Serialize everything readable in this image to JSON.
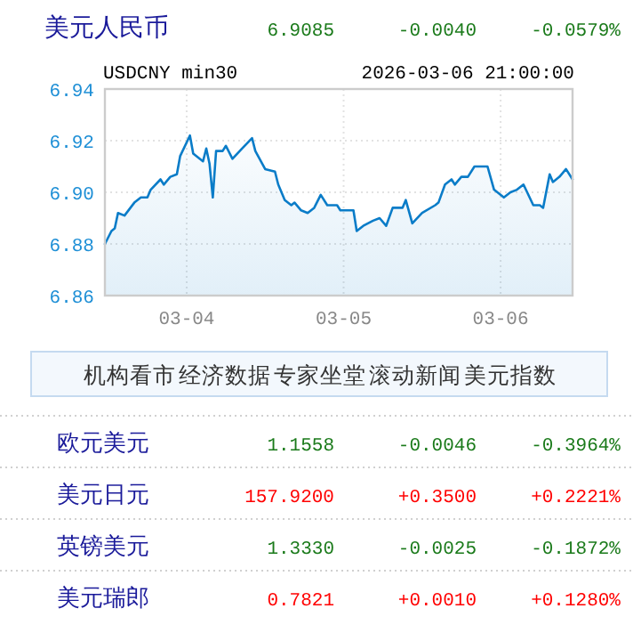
{
  "chart_data": [
    {
      "type": "other",
      "annotations": [
        "美元人民币",
        "6.9085",
        "-0.0040",
        "-0.0579%"
      ],
      "colors": [
        "#1a1a9a",
        "#1a7a1a",
        "#1a7a1a",
        "#1a7a1a"
      ]
    },
    {
      "type": "area",
      "title": "USDCNY min30",
      "subtitle": "2026-03-06 21:00:00",
      "xlim": [
        "2026-03-03T11:30",
        "2026-03-06T11:00"
      ],
      "xticks": [
        {
          "value": "2026-03-04",
          "label": "03-04"
        },
        {
          "value": "2026-03-05",
          "label": "03-05"
        },
        {
          "value": "2026-03-06",
          "label": "03-06"
        }
      ],
      "ylim": [
        6.86,
        6.94
      ],
      "yticks": [
        6.86,
        6.88,
        {
          "value": 6.9,
          "label": "6.90"
        },
        6.92,
        6.94
      ],
      "grid": true,
      "series": [
        {
          "color": "#0a7cc8",
          "x": [
            "2026-03-03T11:30",
            "2026-03-03T12:30",
            "2026-03-03T13:00",
            "2026-03-03T13:30",
            "2026-03-03T14:30",
            "2026-03-03T16:00",
            "2026-03-03T17:00",
            "2026-03-03T18:00",
            "2026-03-03T18:30",
            "2026-03-03T20:00",
            "2026-03-03T20:30",
            "2026-03-03T21:30",
            "2026-03-03T22:30",
            "2026-03-03T23:00",
            "2026-03-04T00:30",
            "2026-03-04T01:00",
            "2026-03-04T02:30",
            "2026-03-04T03:00",
            "2026-03-04T03:30",
            "2026-03-04T04:00",
            "2026-03-04T04:30",
            "2026-03-04T05:30",
            "2026-03-04T06:00",
            "2026-03-04T07:00",
            "2026-03-04T08:30",
            "2026-03-04T10:00",
            "2026-03-04T10:30",
            "2026-03-04T12:00",
            "2026-03-04T13:30",
            "2026-03-04T14:00",
            "2026-03-04T15:00",
            "2026-03-04T16:00",
            "2026-03-04T16:30",
            "2026-03-04T17:30",
            "2026-03-04T18:30",
            "2026-03-04T19:30",
            "2026-03-04T20:30",
            "2026-03-04T21:30",
            "2026-03-04T23:00",
            "2026-03-04T23:30",
            "2026-03-05T01:30",
            "2026-03-05T02:00",
            "2026-03-05T03:00",
            "2026-03-05T04:30",
            "2026-03-05T05:30",
            "2026-03-05T06:30",
            "2026-03-05T07:30",
            "2026-03-05T09:00",
            "2026-03-05T09:30",
            "2026-03-05T10:30",
            "2026-03-05T12:00",
            "2026-03-05T14:00",
            "2026-03-05T14:30",
            "2026-03-05T15:30",
            "2026-03-05T16:30",
            "2026-03-05T17:00",
            "2026-03-05T18:00",
            "2026-03-05T19:00",
            "2026-03-05T20:00",
            "2026-03-05T22:00",
            "2026-03-05T23:00",
            "2026-03-06T00:30",
            "2026-03-06T01:30",
            "2026-03-06T02:30",
            "2026-03-06T03:30",
            "2026-03-06T05:00",
            "2026-03-06T06:00",
            "2026-03-06T06:30",
            "2026-03-06T07:30",
            "2026-03-06T08:00",
            "2026-03-06T09:00",
            "2026-03-06T10:00",
            "2026-03-06T11:00"
          ],
          "values": [
            6.88,
            6.885,
            6.886,
            6.892,
            6.891,
            6.896,
            6.898,
            6.898,
            6.901,
            6.905,
            6.903,
            6.906,
            6.907,
            6.914,
            6.922,
            6.915,
            6.912,
            6.917,
            6.911,
            6.898,
            6.916,
            6.916,
            6.918,
            6.913,
            6.917,
            6.921,
            6.916,
            6.909,
            6.908,
            6.903,
            6.897,
            6.895,
            6.896,
            6.893,
            6.892,
            6.894,
            6.899,
            6.895,
            6.895,
            6.893,
            6.893,
            6.885,
            6.887,
            6.889,
            6.89,
            6.887,
            6.894,
            6.894,
            6.897,
            6.888,
            6.892,
            6.895,
            6.896,
            6.903,
            6.905,
            6.903,
            6.906,
            6.906,
            6.91,
            6.91,
            6.901,
            6.898,
            6.9,
            6.901,
            6.903,
            6.895,
            6.895,
            6.894,
            6.907,
            6.904,
            6.906,
            6.909,
            6.905
          ]
        }
      ]
    },
    {
      "type": "other",
      "annotations": [
        "机构看市",
        "经济数据",
        "专家坐堂",
        "滚动新闻",
        "美元指数"
      ],
      "colors": [
        "#333333",
        "#333333",
        "#333333",
        "#333333",
        "#333333"
      ]
    },
    {
      "type": "other",
      "annotations": [
        "欧元美元",
        "1.1558",
        "-0.0046",
        "-0.3964%",
        "美元日元",
        "157.9200",
        "+0.3500",
        "+0.2221%",
        "英镑美元",
        "1.3330",
        "-0.0025",
        "-0.1872%",
        "美元瑞郎",
        "0.7821",
        "+0.0010",
        "+0.1280%"
      ],
      "colors": [
        "#1a1a9a",
        "#1a7a1a",
        "#1a7a1a",
        "#1a7a1a",
        "#1a1a9a",
        "#ff0000",
        "#ff0000",
        "#ff0000",
        "#1a1a9a",
        "#1a7a1a",
        "#1a7a1a",
        "#1a7a1a",
        "#1a1a9a",
        "#ff0000",
        "#ff0000",
        "#ff0000"
      ]
    }
  ]
}
